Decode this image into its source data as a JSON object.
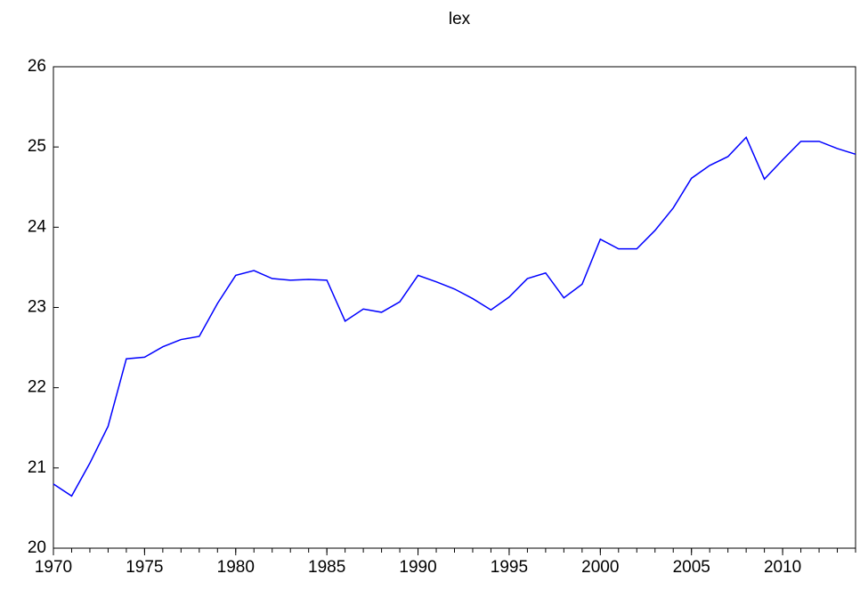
{
  "chart_data": {
    "type": "line",
    "title": "lex",
    "x": [
      1970,
      1971,
      1972,
      1973,
      1974,
      1975,
      1976,
      1977,
      1978,
      1979,
      1980,
      1981,
      1982,
      1983,
      1984,
      1985,
      1986,
      1987,
      1988,
      1989,
      1990,
      1991,
      1992,
      1993,
      1994,
      1995,
      1996,
      1997,
      1998,
      1999,
      2000,
      2001,
      2002,
      2003,
      2004,
      2005,
      2006,
      2007,
      2008,
      2009,
      2010,
      2011,
      2012,
      2013,
      2014
    ],
    "series": [
      {
        "name": "lex",
        "color": "#0000ff",
        "values": [
          20.8,
          20.65,
          21.06,
          21.52,
          22.36,
          22.38,
          22.51,
          22.6,
          22.64,
          23.05,
          23.4,
          23.46,
          23.36,
          23.34,
          23.35,
          23.34,
          22.83,
          22.98,
          22.94,
          23.07,
          23.4,
          23.32,
          23.23,
          23.11,
          22.97,
          23.13,
          23.36,
          23.43,
          23.12,
          23.29,
          23.85,
          23.73,
          23.73,
          23.96,
          24.24,
          24.61,
          24.77,
          24.88,
          25.12,
          24.6,
          24.84,
          25.07,
          25.07,
          24.98,
          24.91
        ]
      }
    ],
    "xlim": [
      1970,
      2014
    ],
    "xticks": [
      1970,
      1975,
      1980,
      1985,
      1990,
      1995,
      2000,
      2005,
      2010
    ],
    "ylim": [
      20,
      26
    ],
    "yticks": [
      20,
      21,
      22,
      23,
      24,
      25,
      26
    ],
    "grid": false
  }
}
